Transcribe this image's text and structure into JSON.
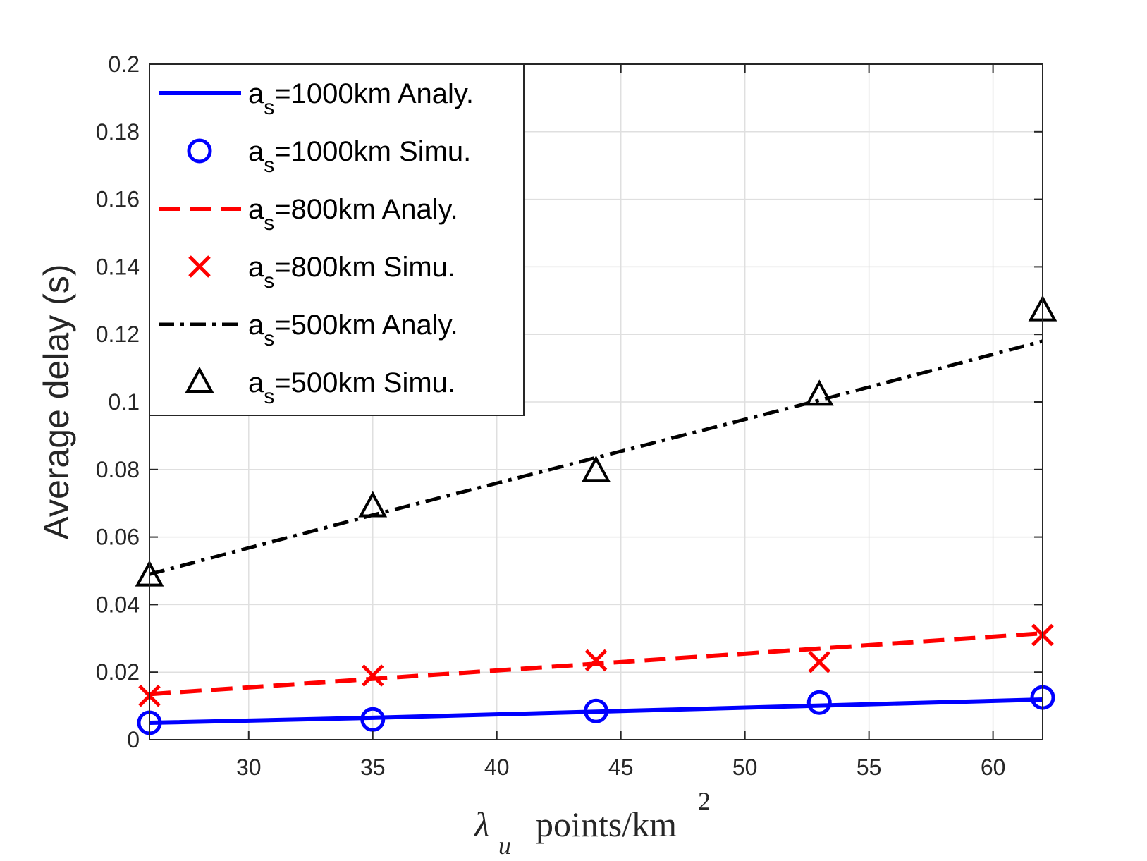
{
  "chart_data": {
    "type": "line",
    "title": "",
    "xlabel": {
      "symbol": "λ",
      "subscript": "u",
      "text": "points/km",
      "superscript": "2"
    },
    "ylabel": "Average delay (s)",
    "xlim": [
      26,
      62
    ],
    "ylim": [
      0,
      0.2
    ],
    "xticks": [
      30,
      35,
      40,
      45,
      50,
      55,
      60
    ],
    "xtick_labels": [
      "30",
      "35",
      "40",
      "45",
      "50",
      "55",
      "60"
    ],
    "yticks": [
      0,
      0.02,
      0.04,
      0.06,
      0.08,
      0.1,
      0.12,
      0.14,
      0.16,
      0.18,
      0.2
    ],
    "ytick_labels": [
      "0",
      "0.02",
      "0.04",
      "0.06",
      "0.08",
      "0.1",
      "0.12",
      "0.14",
      "0.16",
      "0.18",
      "0.2"
    ],
    "grid": true,
    "legend_position": "top-left",
    "x": [
      26,
      35,
      44,
      53,
      62
    ],
    "series": [
      {
        "name": "a_s=1000km Analy.",
        "label_prefix": "a",
        "label_sub": "s",
        "label_suffix": "=1000km Analy.",
        "style": "solid",
        "marker": "none",
        "color": "#0000ff",
        "values": [
          0.005,
          0.0065,
          0.0083,
          0.0101,
          0.0119
        ]
      },
      {
        "name": "a_s=1000km Simu.",
        "label_prefix": "a",
        "label_sub": "s",
        "label_suffix": "=1000km Simu.",
        "style": "none",
        "marker": "circle",
        "color": "#0000ff",
        "values": [
          0.005,
          0.006,
          0.0085,
          0.011,
          0.0125
        ]
      },
      {
        "name": "a_s=800km Analy.",
        "label_prefix": "a",
        "label_sub": "s",
        "label_suffix": "=800km Analy.",
        "style": "dashed",
        "marker": "none",
        "color": "#ff0000",
        "values": [
          0.0135,
          0.018,
          0.0225,
          0.027,
          0.0315
        ]
      },
      {
        "name": "a_s=800km Simu.",
        "label_prefix": "a",
        "label_sub": "s",
        "label_suffix": "=800km Simu.",
        "style": "none",
        "marker": "x",
        "color": "#ff0000",
        "values": [
          0.013,
          0.019,
          0.0235,
          0.023,
          0.031
        ]
      },
      {
        "name": "a_s=500km Analy.",
        "label_prefix": "a",
        "label_sub": "s",
        "label_suffix": "=500km Analy.",
        "style": "dashdot",
        "marker": "none",
        "color": "#000000",
        "values": [
          0.049,
          0.0665,
          0.0835,
          0.1005,
          0.118
        ]
      },
      {
        "name": "a_s=500km Simu.",
        "label_prefix": "a",
        "label_sub": "s",
        "label_suffix": "=500km Simu.",
        "style": "none",
        "marker": "triangle",
        "color": "#000000",
        "values": [
          0.0485,
          0.069,
          0.0795,
          0.102,
          0.127
        ]
      }
    ]
  }
}
